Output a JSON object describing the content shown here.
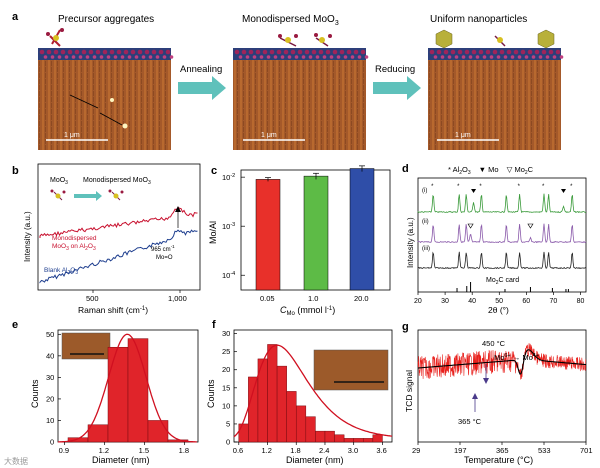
{
  "panel_a": {
    "letter": "a",
    "captions": [
      "Precursor aggregates",
      "Monodispersed MoO",
      "Uniform nanoparticles"
    ],
    "caption_sub_3": "3",
    "arrows": [
      "Annealing",
      "Reducing"
    ],
    "scalebar": "1 μm"
  },
  "panel_b": {
    "letter": "b",
    "inset": {
      "left": "MoO",
      "left_sub": "3",
      "mid": "Monodispersed MoO",
      "mid_sub": "3"
    },
    "series_labels": [
      "Monodispersed",
      "MoO",
      "3",
      " on Al",
      "2",
      "O",
      "3",
      "Blank Al",
      "2",
      "O",
      "3"
    ],
    "peak_label_1": "965 cm",
    "peak_label_sup": "-1",
    "peak_label_2": "Mo=O",
    "ylabel": "Intensity (a.u.)",
    "xlabel": "Raman shift (cm",
    "xlabel_sup": "-1",
    "xlabel_end": ")",
    "xticks": [
      "500",
      "1,000"
    ]
  },
  "panel_c": {
    "letter": "c",
    "ylabel": "Mo/Al",
    "yticks": [
      "10",
      "10",
      "10"
    ],
    "ytick_exps": [
      "-2",
      "-3",
      "-4"
    ],
    "xlabel_c": "C",
    "xlabel_sub": "Mo",
    "xlabel_rest": " (mmol l",
    "xlabel_sup": "-1",
    "xlabel_end": ")",
    "chart_data": {
      "type": "bar",
      "categories": [
        "0.05",
        "1.0",
        "20.0"
      ],
      "values": [
        0.009,
        0.0105,
        0.015
      ],
      "errors": [
        0.0008,
        0.0015,
        0.002
      ],
      "colors": [
        "#e8302a",
        "#5dbb46",
        "#2f4ea8"
      ],
      "yscale": "log",
      "ylim": [
        5e-05,
        0.014
      ]
    }
  },
  "panel_d": {
    "letter": "d",
    "legend": [
      "* Al",
      "2",
      "O",
      "3",
      "▼ Mo",
      "▽ Mo",
      "2",
      "C"
    ],
    "traces": [
      "(i)",
      "(ii)",
      "(iii)"
    ],
    "card": "Mo",
    "card_sub": "2",
    "card_rest": "C card",
    "ylabel": "Intensity (a.u.)",
    "xlabel": "2θ (°)",
    "xticks": [
      "20",
      "30",
      "40",
      "50",
      "60",
      "70",
      "80"
    ]
  },
  "panel_e": {
    "letter": "e",
    "ylabel": "Counts",
    "xlabel": "Diameter (nm)",
    "yticks": [
      "0",
      "10",
      "20",
      "30",
      "40",
      "50"
    ],
    "xticks": [
      "0.9",
      "1.2",
      "1.5",
      "1.8"
    ],
    "chart_data": {
      "type": "bar",
      "x": [
        1.0,
        1.15,
        1.3,
        1.45,
        1.6,
        1.75
      ],
      "values": [
        2,
        8,
        44,
        48,
        10,
        1
      ],
      "xlim": [
        0.85,
        1.9
      ],
      "ylim": [
        0,
        52
      ]
    }
  },
  "panel_f": {
    "letter": "f",
    "ylabel": "Counts",
    "xlabel": "Diameter (nm)",
    "yticks": [
      "0",
      "5",
      "10",
      "15",
      "20",
      "25",
      "30"
    ],
    "xticks": [
      "0.6",
      "1.2",
      "1.8",
      "2.4",
      "3.0",
      "3.6"
    ],
    "chart_data": {
      "type": "bar",
      "x": [
        0.7,
        0.9,
        1.1,
        1.3,
        1.5,
        1.7,
        1.9,
        2.1,
        2.3,
        2.5,
        2.7,
        2.9,
        3.1,
        3.3,
        3.5
      ],
      "values": [
        5,
        18,
        23,
        27,
        21,
        14,
        10,
        7,
        3,
        3,
        2,
        1,
        1,
        1,
        2
      ],
      "xlim": [
        0.5,
        3.8
      ],
      "ylim": [
        0,
        31
      ]
    }
  },
  "panel_g": {
    "letter": "g",
    "ylabel": "TCD signal",
    "xlabel": "Temperature (°C)",
    "xticks": [
      "29",
      "197",
      "365",
      "533",
      "701"
    ],
    "ann1": "450 °C",
    "ann2_a": "Mo",
    "ann2_sup1": "6+",
    "ann2_b": " → Mo",
    "ann2_sup2": "4+",
    "ann3": "365 °C"
  },
  "watermark": "大数据"
}
